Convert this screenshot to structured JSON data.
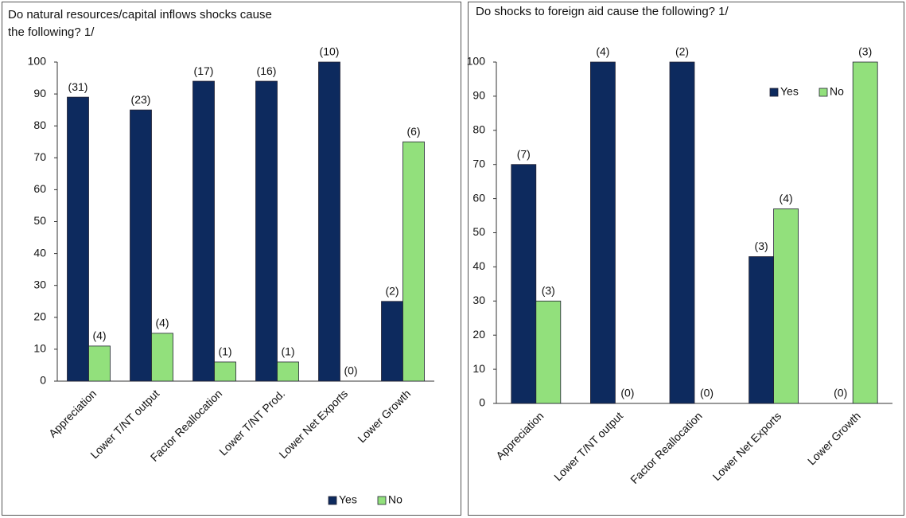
{
  "chart_data": [
    {
      "type": "bar",
      "title": "Do natural resources/capital inflows shocks cause the following? 1/",
      "categories": [
        "Appreciation",
        "Lower T/NT output",
        "Factor Reallocation",
        "Lower T/NT Prod.",
        "Lower Net Exports",
        "Lower Growth"
      ],
      "series": [
        {
          "name": "Yes",
          "color": "#0d2a5e",
          "values": [
            89,
            85,
            94,
            94,
            100,
            25
          ],
          "value_labels": [
            "(31)",
            "(23)",
            "(17)",
            "(16)",
            "(10)",
            "(2)"
          ]
        },
        {
          "name": "No",
          "color": "#92e07c",
          "values": [
            11,
            15,
            6,
            6,
            0,
            75
          ],
          "value_labels": [
            "(4)",
            "(4)",
            "(1)",
            "(1)",
            "(0)",
            "(6)"
          ]
        }
      ],
      "ylim": [
        0,
        100
      ],
      "yticks": [
        0,
        10,
        20,
        30,
        40,
        50,
        60,
        70,
        80,
        90,
        100
      ],
      "legend": "bottom-right"
    },
    {
      "type": "bar",
      "title": "Do shocks to foreign aid cause the following? 1/",
      "categories": [
        "Appreciation",
        "Lower T/NT output",
        "Factor Reallocation",
        "Lower Net Exports",
        "Lower Growth"
      ],
      "series": [
        {
          "name": "Yes",
          "color": "#0d2a5e",
          "values": [
            70,
            100,
            100,
            43,
            0
          ],
          "value_labels": [
            "(7)",
            "(4)",
            "(2)",
            "(3)",
            "(0)"
          ]
        },
        {
          "name": "No",
          "color": "#92e07c",
          "values": [
            30,
            0,
            0,
            57,
            100
          ],
          "value_labels": [
            "(3)",
            "(0)",
            "(0)",
            "(4)",
            "(3)"
          ]
        }
      ],
      "ylim": [
        0,
        100
      ],
      "yticks": [
        0,
        10,
        20,
        30,
        40,
        50,
        60,
        70,
        80,
        90,
        100
      ],
      "legend": "top-right"
    }
  ]
}
